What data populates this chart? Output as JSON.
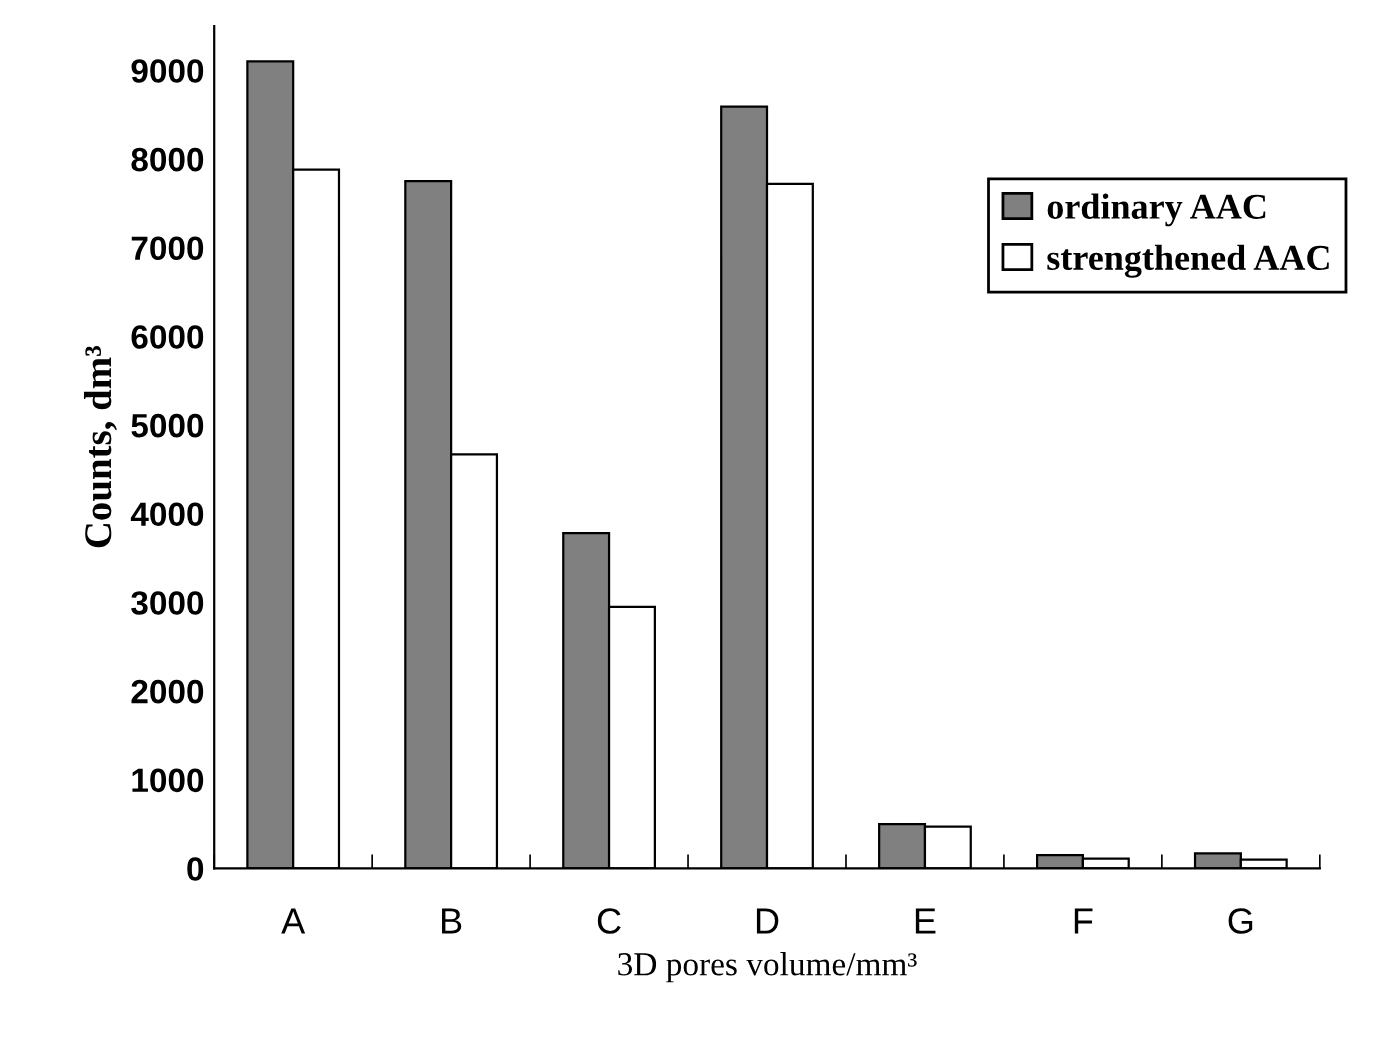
{
  "chart_data": {
    "type": "bar",
    "xlabel": "3D pores volume/mm³",
    "ylabel": "Counts, dm³",
    "categories": [
      "A",
      "B",
      "C",
      "D",
      "E",
      "F",
      "G"
    ],
    "series": [
      {
        "name": "ordinary AAC",
        "color": "#808080",
        "values": [
          9100,
          7750,
          3780,
          8590,
          500,
          150,
          170
        ]
      },
      {
        "name": "strengthened AAC",
        "color": "#ffffff",
        "values": [
          7880,
          4670,
          2950,
          7720,
          470,
          110,
          100
        ]
      }
    ],
    "ylim": [
      0,
      9500
    ],
    "yticks": [
      0,
      1000,
      2000,
      3000,
      4000,
      5000,
      6000,
      7000,
      8000,
      9000
    ],
    "grid": false,
    "legend": "top right"
  }
}
